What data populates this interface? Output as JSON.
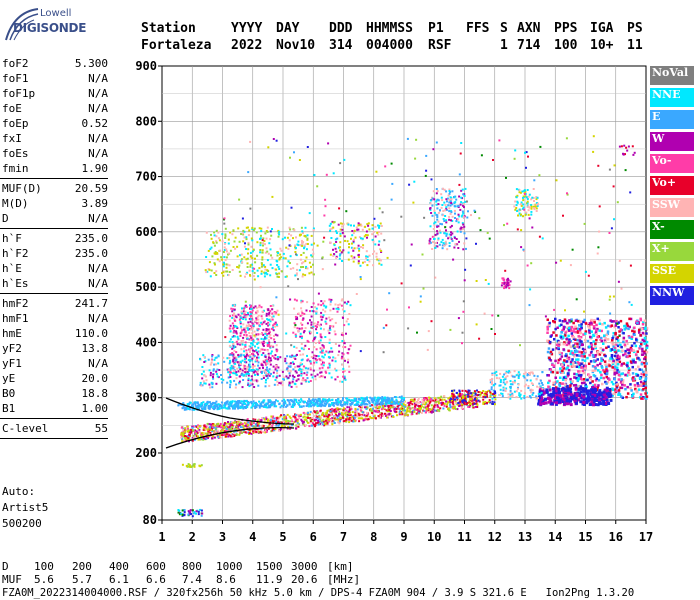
{
  "logo": {
    "line1": "Lowell",
    "line2": "DIGISONDE"
  },
  "header": {
    "labels": [
      "Station",
      "YYYY",
      "DAY",
      "DDD",
      "HHMMSS",
      "P1",
      "FFS",
      "S",
      "AXN",
      "PPS",
      "IGA",
      "PS"
    ],
    "values": [
      "Fortaleza",
      "2022",
      "Nov10",
      "314",
      "004000",
      "RSF",
      "",
      "1",
      "714",
      "100",
      "10+",
      "11"
    ]
  },
  "params": {
    "group1": [
      {
        "name": "foF2",
        "value": "5.300"
      },
      {
        "name": "foF1",
        "value": "N/A"
      },
      {
        "name": "foF1p",
        "value": "N/A"
      },
      {
        "name": "foE",
        "value": "N/A"
      },
      {
        "name": "foEp",
        "value": "0.52"
      },
      {
        "name": "fxI",
        "value": "N/A"
      },
      {
        "name": "foEs",
        "value": "N/A"
      },
      {
        "name": "fmin",
        "value": "1.90"
      }
    ],
    "group2": [
      {
        "name": "MUF(D)",
        "value": "20.59"
      },
      {
        "name": "M(D)",
        "value": "3.89"
      },
      {
        "name": "D",
        "value": "N/A"
      }
    ],
    "group3": [
      {
        "name": "h`F",
        "value": "235.0"
      },
      {
        "name": "h`F2",
        "value": "235.0"
      },
      {
        "name": "h`E",
        "value": "N/A"
      },
      {
        "name": "h`Es",
        "value": "N/A"
      }
    ],
    "group4": [
      {
        "name": "hmF2",
        "value": "241.7"
      },
      {
        "name": "hmF1",
        "value": "N/A"
      },
      {
        "name": "hmE",
        "value": "110.0"
      },
      {
        "name": "yF2",
        "value": "13.8"
      },
      {
        "name": "yF1",
        "value": "N/A"
      },
      {
        "name": "yE",
        "value": "20.0"
      },
      {
        "name": "B0",
        "value": "18.8"
      },
      {
        "name": "B1",
        "value": "1.00"
      }
    ],
    "group5": [
      {
        "name": "C-level",
        "value": "55"
      }
    ],
    "auto": [
      "Auto:",
      "Artist5",
      "500200"
    ]
  },
  "legend": [
    {
      "label": "NoVal",
      "color": "#7f7f7f"
    },
    {
      "label": "NNE",
      "color": "#00e8ff"
    },
    {
      "label": "E",
      "color": "#3aa8ff"
    },
    {
      "label": "W",
      "color": "#b000b0"
    },
    {
      "label": "Vo-",
      "color": "#ff3ca8"
    },
    {
      "label": "Vo+",
      "color": "#e8002a"
    },
    {
      "label": "SSW",
      "color": "#ffb4b4"
    },
    {
      "label": "X-",
      "color": "#008a00"
    },
    {
      "label": "X+",
      "color": "#98d83c"
    },
    {
      "label": "SSE",
      "color": "#d4d400"
    },
    {
      "label": "NNW",
      "color": "#2020e0"
    }
  ],
  "chart_data": {
    "type": "scatter",
    "x_ticks": [
      "1",
      "2",
      "3",
      "4",
      "5",
      "6",
      "7",
      "8",
      "9",
      "10",
      "11",
      "12",
      "13",
      "14",
      "15",
      "16",
      "17"
    ],
    "y_ticks": [
      "900",
      "800",
      "700",
      "600",
      "500",
      "400",
      "300",
      "200",
      "80"
    ],
    "xlim": [
      1,
      17
    ],
    "ylim": [
      80,
      900
    ],
    "grid": true
  },
  "footer": {
    "d_label": "D",
    "muf_label": "MUF",
    "d_values": [
      "100",
      "200",
      "400",
      "600",
      "800",
      "1000",
      "1500",
      "3000",
      "[km]"
    ],
    "muf_values": [
      "5.6",
      "5.7",
      "6.1",
      "6.6",
      "7.4",
      "8.6",
      "11.9",
      "20.6",
      "[MHz]"
    ],
    "info": "FZA0M_2022314004000.RSF / 320fx256h 50 kHz 5.0 km / DPS-4 FZA0M 904 / 3.9 S 321.6 E   Ion2Png 1.3.20"
  }
}
